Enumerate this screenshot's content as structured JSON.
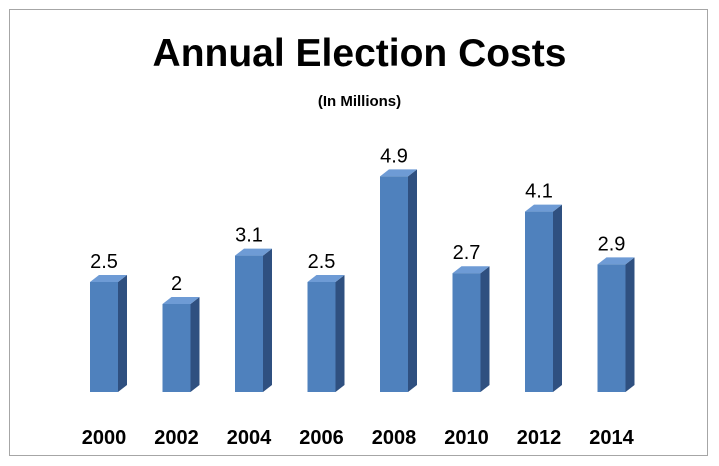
{
  "chart_data": {
    "type": "bar",
    "title": "Annual Election Costs",
    "subtitle": "(In Millions)",
    "categories": [
      "2000",
      "2002",
      "2004",
      "2006",
      "2008",
      "2010",
      "2012",
      "2014"
    ],
    "values": [
      2.5,
      2,
      3.1,
      2.5,
      4.9,
      2.7,
      4.1,
      2.9
    ],
    "data_labels": [
      "2.5",
      "2",
      "3.1",
      "2.5",
      "4.9",
      "2.7",
      "4.1",
      "2.9"
    ],
    "xlabel": "",
    "ylabel": "",
    "ylim": [
      0,
      5
    ],
    "grid": false,
    "legend": "none",
    "style": "3d-column"
  },
  "colors": {
    "bar_front": "#4f81bd",
    "bar_side": "#2f5080",
    "bar_top": "#6e9bd5",
    "border": "#a6a6a6"
  }
}
